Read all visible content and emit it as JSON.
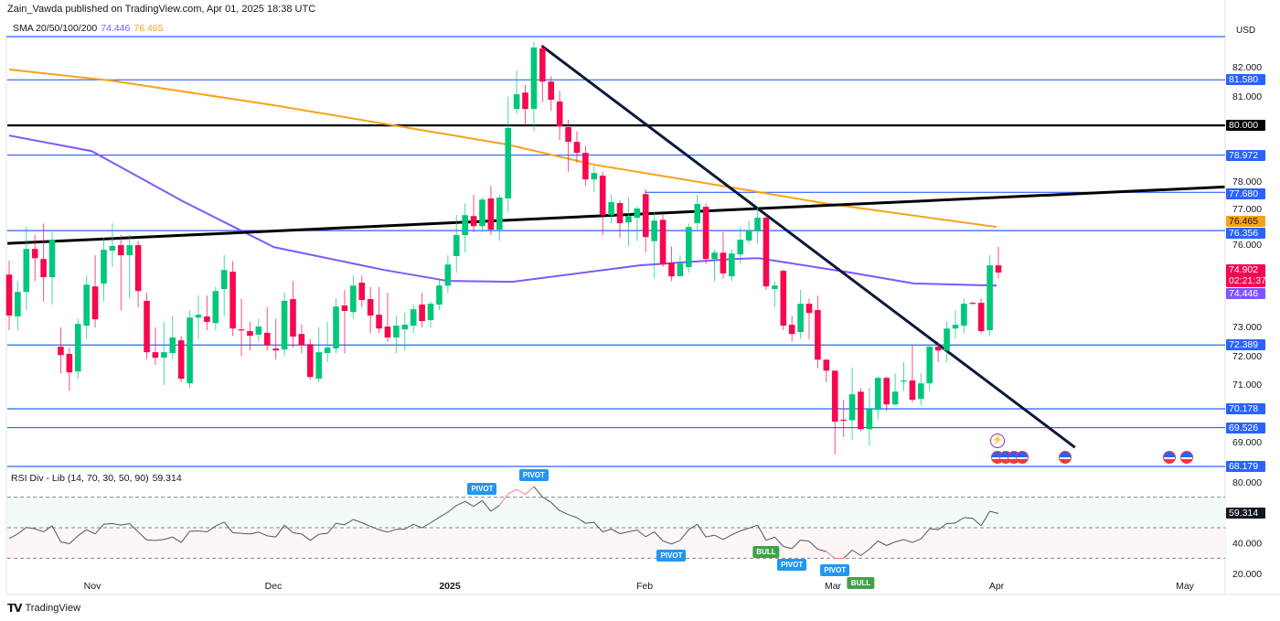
{
  "header": {
    "published": "Zain_Vawda published on TradingView.com, Apr 01, 2025 18:38 UTC"
  },
  "legend": {
    "label": "SMA 20/50/100/200",
    "sma100": "74.446",
    "sma200": "76.465"
  },
  "currency": "USD",
  "rsi_legend": {
    "label": "RSI Div - Lib (14, 70, 30, 50, 90)",
    "value": "59.314"
  },
  "footer": {
    "logo": "TradingView"
  },
  "colors": {
    "up": "#089981",
    "up_fill": "#00c77a",
    "down": "#f7084e",
    "sma100": "#7e57ff",
    "sma200": "#f7a21b",
    "level": "#2962ff",
    "trend": "#0b1a3a",
    "pivot": "#2196f3",
    "bull": "#43a047"
  },
  "chart_data": [
    {
      "type": "candlestick",
      "title": "Price",
      "ylim": [
        68.18,
        83.08
      ],
      "yticks": [
        "82.000",
        "81.000",
        "78.000",
        "77.000",
        "76.000",
        "73.000",
        "72.000",
        "71.000",
        "69.000"
      ],
      "ytick_values": [
        82,
        81,
        78,
        77,
        76,
        73,
        72,
        71,
        69
      ],
      "xticks": [
        "Nov",
        "Dec",
        "2025",
        "Feb",
        "Mar",
        "Apr",
        "May"
      ],
      "candles_ohlc": [
        [
          74.83,
          75.3,
          72.9,
          73.41
        ],
        [
          73.38,
          74.6,
          72.9,
          74.23
        ],
        [
          74.23,
          76.5,
          73.6,
          75.72
        ],
        [
          75.72,
          76.2,
          74.6,
          75.4
        ],
        [
          75.37,
          76.6,
          73.9,
          74.74
        ],
        [
          74.74,
          76.3,
          73.8,
          76.04
        ],
        [
          72.33,
          73.0,
          71.4,
          72.04
        ],
        [
          72.08,
          72.3,
          70.8,
          71.44
        ],
        [
          71.47,
          73.3,
          71.2,
          73.12
        ],
        [
          73.06,
          74.8,
          72.6,
          74.48
        ],
        [
          74.42,
          75.5,
          73.0,
          73.28
        ],
        [
          74.52,
          76.1,
          73.9,
          75.69
        ],
        [
          75.66,
          76.6,
          75.1,
          75.82
        ],
        [
          75.85,
          76.2,
          73.6,
          75.5
        ],
        [
          75.5,
          76.2,
          74.0,
          75.85
        ],
        [
          75.85,
          76.0,
          73.7,
          74.26
        ],
        [
          73.92,
          74.2,
          71.9,
          72.14
        ],
        [
          72.14,
          73.0,
          71.7,
          71.95
        ],
        [
          71.95,
          73.2,
          71.0,
          72.14
        ],
        [
          72.11,
          73.4,
          71.9,
          72.65
        ],
        [
          72.55,
          72.7,
          71.1,
          71.22
        ],
        [
          71.06,
          73.6,
          70.9,
          73.34
        ],
        [
          73.34,
          74.1,
          72.6,
          73.44
        ],
        [
          73.38,
          74.1,
          72.9,
          73.19
        ],
        [
          73.15,
          74.4,
          72.9,
          74.26
        ],
        [
          74.33,
          75.5,
          73.4,
          74.99
        ],
        [
          74.93,
          75.3,
          72.7,
          72.96
        ],
        [
          72.93,
          74.0,
          72.0,
          72.9
        ],
        [
          72.87,
          73.2,
          72.2,
          72.71
        ],
        [
          72.75,
          73.3,
          72.5,
          73.03
        ],
        [
          72.81,
          73.7,
          72.2,
          72.39
        ],
        [
          72.27,
          73.3,
          71.9,
          72.2
        ],
        [
          72.23,
          74.2,
          72.0,
          73.92
        ],
        [
          73.98,
          74.6,
          72.3,
          72.68
        ],
        [
          72.77,
          73.1,
          72.1,
          72.39
        ],
        [
          72.42,
          72.6,
          71.2,
          71.28
        ],
        [
          71.22,
          73.0,
          71.1,
          72.14
        ],
        [
          72.11,
          73.2,
          71.8,
          72.3
        ],
        [
          72.27,
          74.0,
          72.1,
          73.72
        ],
        [
          73.76,
          74.3,
          72.1,
          73.57
        ],
        [
          73.53,
          74.8,
          73.3,
          74.45
        ],
        [
          74.55,
          74.8,
          73.7,
          73.95
        ],
        [
          73.98,
          74.4,
          72.8,
          73.41
        ],
        [
          73.44,
          74.4,
          72.8,
          72.96
        ],
        [
          73.03,
          74.2,
          72.5,
          72.65
        ],
        [
          72.65,
          73.4,
          72.1,
          73.06
        ],
        [
          72.93,
          73.5,
          72.2,
          73.09
        ],
        [
          73.06,
          73.8,
          72.8,
          73.63
        ],
        [
          73.79,
          74.2,
          73.0,
          73.22
        ],
        [
          73.25,
          73.9,
          73.0,
          73.82
        ],
        [
          73.79,
          74.7,
          73.6,
          74.45
        ],
        [
          74.45,
          75.5,
          74.2,
          75.18
        ],
        [
          75.47,
          76.9,
          74.9,
          76.2
        ],
        [
          76.2,
          77.3,
          75.6,
          76.89
        ],
        [
          76.86,
          77.6,
          76.3,
          76.51
        ],
        [
          76.51,
          77.5,
          76.3,
          77.43
        ],
        [
          77.47,
          77.9,
          76.2,
          76.39
        ],
        [
          76.39,
          77.6,
          76.0,
          77.5
        ],
        [
          77.47,
          81.0,
          77.0,
          79.91
        ],
        [
          80.57,
          81.9,
          80.4,
          81.08
        ],
        [
          81.14,
          81.4,
          80.0,
          80.57
        ],
        [
          80.57,
          82.9,
          79.8,
          82.7
        ],
        [
          82.67,
          82.8,
          80.8,
          81.52
        ],
        [
          81.52,
          81.7,
          80.5,
          80.89
        ],
        [
          80.83,
          81.2,
          79.5,
          79.97
        ],
        [
          79.94,
          80.2,
          78.4,
          79.43
        ],
        [
          79.43,
          79.8,
          78.7,
          79.05
        ],
        [
          79.05,
          79.3,
          77.9,
          78.13
        ],
        [
          78.13,
          78.6,
          77.7,
          78.35
        ],
        [
          78.26,
          78.4,
          76.2,
          76.89
        ],
        [
          76.89,
          77.6,
          76.6,
          77.34
        ],
        [
          77.31,
          77.4,
          76.1,
          76.61
        ],
        [
          76.64,
          77.5,
          75.8,
          76.86
        ],
        [
          76.8,
          77.2,
          76.0,
          77.12
        ],
        [
          77.62,
          77.8,
          75.6,
          76.13
        ],
        [
          75.99,
          77.0,
          74.7,
          76.7
        ],
        [
          76.73,
          76.9,
          75.1,
          75.18
        ],
        [
          75.25,
          75.8,
          74.6,
          74.77
        ],
        [
          74.77,
          75.5,
          74.8,
          75.21
        ],
        [
          75.09,
          76.6,
          74.9,
          76.48
        ],
        [
          76.61,
          77.6,
          76.4,
          77.28
        ],
        [
          77.18,
          77.3,
          75.2,
          75.37
        ],
        [
          75.37,
          75.7,
          74.6,
          75.59
        ],
        [
          75.59,
          76.3,
          74.7,
          74.87
        ],
        [
          74.77,
          75.7,
          74.6,
          75.56
        ],
        [
          75.53,
          76.5,
          75.2,
          76.04
        ],
        [
          76.01,
          76.7,
          75.9,
          76.36
        ],
        [
          76.36,
          77.2,
          75.9,
          76.8
        ],
        [
          76.8,
          76.9,
          74.3,
          74.42
        ],
        [
          74.33,
          74.6,
          73.7,
          74.45
        ],
        [
          74.96,
          75.0,
          72.9,
          73.06
        ],
        [
          73.09,
          73.4,
          72.5,
          72.77
        ],
        [
          72.84,
          74.3,
          72.6,
          73.82
        ],
        [
          73.82,
          74.0,
          72.6,
          73.5
        ],
        [
          73.6,
          74.1,
          71.6,
          71.88
        ],
        [
          71.88,
          71.9,
          71.1,
          71.5
        ],
        [
          71.5,
          71.5,
          68.6,
          69.73
        ],
        [
          69.8,
          70.5,
          69.2,
          69.78
        ],
        [
          69.78,
          71.6,
          69.1,
          70.68
        ],
        [
          70.77,
          70.9,
          69.4,
          69.47
        ],
        [
          69.47,
          70.9,
          68.9,
          70.17
        ],
        [
          70.14,
          71.3,
          69.8,
          71.25
        ],
        [
          71.25,
          71.3,
          70.1,
          70.33
        ],
        [
          70.33,
          71.4,
          70.3,
          70.77
        ],
        [
          71.14,
          71.8,
          70.8,
          71.16
        ],
        [
          71.16,
          72.4,
          70.4,
          70.49
        ],
        [
          70.52,
          71.4,
          70.3,
          71.06
        ],
        [
          71.06,
          72.4,
          70.8,
          72.33
        ],
        [
          72.33,
          72.5,
          71.8,
          72.2
        ],
        [
          72.2,
          73.2,
          71.8,
          72.96
        ],
        [
          72.96,
          73.6,
          72.6,
          73.09
        ],
        [
          73.06,
          74.0,
          72.8,
          73.82
        ],
        [
          73.85,
          73.9,
          73.8,
          73.82
        ],
        [
          73.85,
          74.0,
          72.8,
          72.87
        ],
        [
          72.9,
          75.5,
          72.7,
          75.15
        ],
        [
          75.15,
          75.8,
          74.7,
          74.9
        ]
      ],
      "sma": [
        {
          "name": "SMA 100",
          "value": "74.446",
          "points": [
            [
              0,
              79.65
            ],
            [
              9.6,
              79.11
            ],
            [
              20.2,
              77.37
            ],
            [
              30.8,
              75.78
            ],
            [
              43.6,
              74.99
            ],
            [
              51,
              74.61
            ],
            [
              58.5,
              74.58
            ],
            [
              73.3,
              75.15
            ],
            [
              84,
              75.37
            ],
            [
              87.1,
              75.4
            ],
            [
              90.3,
              75.25
            ],
            [
              97.8,
              74.9
            ],
            [
              105.2,
              74.52
            ],
            [
              114.8,
              74.45
            ]
          ]
        },
        {
          "name": "SMA 200",
          "value": "76.465",
          "points": [
            [
              0,
              81.94
            ],
            [
              11.7,
              81.56
            ],
            [
              30.8,
              80.7
            ],
            [
              57.9,
              79.34
            ],
            [
              68,
              78.64
            ],
            [
              84,
              77.85
            ],
            [
              94.6,
              77.31
            ],
            [
              114.8,
              76.48
            ]
          ]
        }
      ],
      "levels": [
        {
          "value": 81.58,
          "label": "81.580",
          "style": "blue",
          "from": 0
        },
        {
          "value": 80.0,
          "label": "80.000",
          "style": "black",
          "from": 0
        },
        {
          "value": 78.972,
          "label": "78.972",
          "style": "blue",
          "from": 0
        },
        {
          "value": 77.68,
          "label": "77.680",
          "style": "blue",
          "from": 73.9
        },
        {
          "value": 76.356,
          "label": "76.356",
          "style": "blue",
          "from": 0
        },
        {
          "value": 72.389,
          "label": "72.389",
          "style": "blue",
          "from": 0
        },
        {
          "value": 70.178,
          "label": "70.178",
          "style": "blue",
          "from": 0
        },
        {
          "value": 69.526,
          "label": "69.526",
          "style": "blue",
          "from": 0
        },
        {
          "value": 68.179,
          "label": "68.179",
          "style": "blue",
          "from": 0
        }
      ],
      "trendlines": [
        {
          "name": "rising-trendline",
          "from": [
            -0.2,
            75.91
          ],
          "to": [
            141.3,
            77.87
          ]
        },
        {
          "name": "falling-trendline",
          "from": [
            61.9,
            82.76
          ],
          "to": [
            123.9,
            68.84
          ]
        }
      ],
      "price_labels": {
        "sma200": "76.465",
        "last": "74.902",
        "countdown": "02:21:37",
        "sma100": "74.446"
      }
    },
    {
      "type": "line",
      "title": "RSI Div - Lib (14, 70, 30, 50, 90)",
      "ylim": [
        13.5,
        86.6
      ],
      "yticks": [
        "80.000",
        "40.000",
        "20.000"
      ],
      "ytick_values": [
        80,
        40,
        20
      ],
      "bands": [
        70,
        50,
        30
      ],
      "last": "59.314",
      "values": [
        42.9,
        45.9,
        50.2,
        49.3,
        47.3,
        51.3,
        40.7,
        39.5,
        44.7,
        48.7,
        45.9,
        52.3,
        52.7,
        51.7,
        52.7,
        47.3,
        41.9,
        41.7,
        42.3,
        43.9,
        40.3,
        47.7,
        47.9,
        47.3,
        51.1,
        53.7,
        46.7,
        46.3,
        45.9,
        47.1,
        44.7,
        43.9,
        51.7,
        46.7,
        45.9,
        41.7,
        45.7,
        46.3,
        52.9,
        51.9,
        55.4,
        53.3,
        50.9,
        48.7,
        47.1,
        48.9,
        49.1,
        52.3,
        49.9,
        53.3,
        56.8,
        60.2,
        64.6,
        67.2,
        64.0,
        67.8,
        60.8,
        64.6,
        72.2,
        75.2,
        71.8,
        77.0,
        70.2,
        66.6,
        61.2,
        58.6,
        56.6,
        52.9,
        53.5,
        47.3,
        49.1,
        46.1,
        47.3,
        48.5,
        44.1,
        47.3,
        41.3,
        39.3,
        41.7,
        48.7,
        52.3,
        43.9,
        45.1,
        42.3,
        45.3,
        47.9,
        49.7,
        51.7,
        41.7,
        43.9,
        37.7,
        36.3,
        41.9,
        41.1,
        35.9,
        34.3,
        29.9,
        29.9,
        35.3,
        31.7,
        35.9,
        41.3,
        38.3,
        40.7,
        42.3,
        40.3,
        42.7,
        49.3,
        48.7,
        52.7,
        53.1,
        56.6,
        56.2,
        51.3,
        60.8,
        59.3
      ],
      "red_segments": [
        [
          57,
          61
        ],
        [
          95,
          97
        ]
      ],
      "signals": [
        {
          "label": "PIVOT",
          "index": 55,
          "position": "above",
          "kind": "pivot"
        },
        {
          "label": "PIVOT",
          "index": 61,
          "position": "above",
          "kind": "pivot"
        },
        {
          "label": "PIVOT",
          "index": 77,
          "position": "below",
          "kind": "pivot"
        },
        {
          "label": "BULL",
          "index": 88,
          "position": "below",
          "kind": "bull"
        },
        {
          "label": "PIVOT",
          "index": 91,
          "position": "below",
          "kind": "pivot"
        },
        {
          "label": "PIVOT",
          "index": 96,
          "position": "below",
          "kind": "pivot"
        },
        {
          "label": "BULL",
          "index": 99,
          "position": "below",
          "kind": "bull"
        }
      ]
    }
  ]
}
